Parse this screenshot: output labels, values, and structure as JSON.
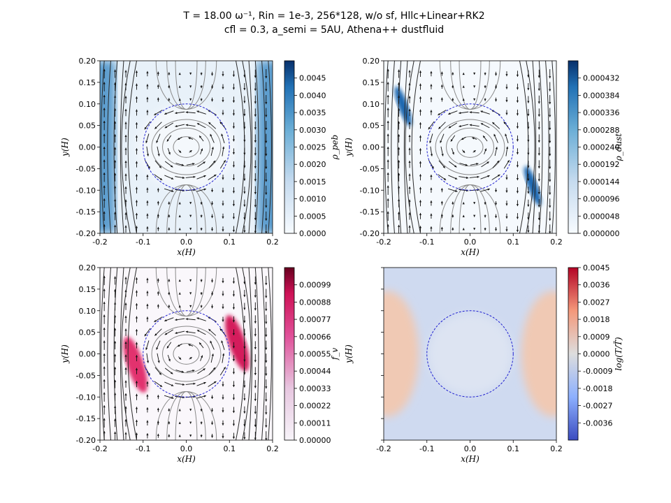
{
  "figure": {
    "title_line1": "T = 18.00 ω⁻¹, Rin = 1e-3, 256*128, w/o sf,     Hllc+Linear+RK2",
    "title_line2": "cfl = 0.3, a_semi = 5AU, Athena++ dustfluid"
  },
  "chart_data": [
    {
      "type": "heatmap",
      "panel": "top-left",
      "xlabel": "x(H)",
      "ylabel": "y(H)",
      "xlim": [
        -0.2,
        0.2
      ],
      "ylim": [
        -0.2,
        0.2
      ],
      "xticks": [
        "-0.2",
        "-0.1",
        "0.0",
        "0.1",
        "0.2"
      ],
      "yticks": [
        "0.20",
        "0.15",
        "0.10",
        "0.05",
        "0.00",
        "-0.05",
        "-0.10",
        "-0.15",
        "-0.20"
      ],
      "colorbar_label": "ρ_peb",
      "colorbar_range": [
        0,
        0.005
      ],
      "colorbar_ticks": [
        "0.0045",
        "0.0040",
        "0.0035",
        "0.0030",
        "0.0025",
        "0.0020",
        "0.0015",
        "0.0010",
        "0.0005",
        "0.0000"
      ],
      "colormap": "Blues",
      "overlays": [
        "streamlines",
        "velocity-arrows",
        "hill-sphere-circle"
      ],
      "circle_radius": 0.1
    },
    {
      "type": "heatmap",
      "panel": "top-right",
      "xlabel": "x(H)",
      "ylabel": "y(H)",
      "xlim": [
        -0.2,
        0.2
      ],
      "ylim": [
        -0.2,
        0.2
      ],
      "xticks": [
        "-0.2",
        "-0.1",
        "0.0",
        "0.1",
        "0.2"
      ],
      "yticks": [
        "0.20",
        "0.15",
        "0.10",
        "0.05",
        "0.00",
        "-0.05",
        "-0.10",
        "-0.15",
        "-0.20"
      ],
      "colorbar_label": "ρ_dust",
      "colorbar_range": [
        0,
        0.00048
      ],
      "colorbar_ticks": [
        "0.000432",
        "0.000384",
        "0.000336",
        "0.000288",
        "0.000240",
        "0.000192",
        "0.000144",
        "0.000096",
        "0.000048",
        "0.000000"
      ],
      "colormap": "Blues",
      "overlays": [
        "streamlines",
        "velocity-arrows",
        "hill-sphere-circle"
      ],
      "circle_radius": 0.1
    },
    {
      "type": "heatmap",
      "panel": "bottom-left",
      "xlabel": "x(H)",
      "ylabel": "y(H)",
      "xlim": [
        -0.2,
        0.2
      ],
      "ylim": [
        -0.2,
        0.2
      ],
      "xticks": [
        "-0.2",
        "-0.1",
        "0.0",
        "0.1",
        "0.2"
      ],
      "yticks": [
        "0.20",
        "0.15",
        "0.10",
        "0.05",
        "0.00",
        "-0.05",
        "-0.10",
        "-0.15",
        "-0.20"
      ],
      "colorbar_label": "f_v",
      "colorbar_range": [
        0,
        0.0011
      ],
      "colorbar_ticks": [
        "0.00099",
        "0.00088",
        "0.00077",
        "0.00066",
        "0.00055",
        "0.00044",
        "0.00033",
        "0.00022",
        "0.00011",
        "0.00000"
      ],
      "colormap": "RdPu",
      "overlays": [
        "streamlines",
        "velocity-arrows",
        "hill-sphere-circle"
      ],
      "circle_radius": 0.1
    },
    {
      "type": "heatmap",
      "panel": "bottom-right",
      "xlabel": "x(H)",
      "ylabel": "y(H)",
      "xlim": [
        -0.2,
        0.2
      ],
      "ylim": [
        -0.2,
        0.2
      ],
      "xticks": [
        "-0.2",
        "-0.1",
        "0.0",
        "0.1",
        "0.2"
      ],
      "yticks": [],
      "colorbar_label": "log(T/T̄)",
      "colorbar_range": [
        -0.0045,
        0.0045
      ],
      "colorbar_ticks": [
        "0.0045",
        "0.0036",
        "0.0027",
        "0.0018",
        "0.0009",
        "0.0000",
        "-0.0009",
        "-0.0018",
        "-0.0027",
        "-0.0036"
      ],
      "colormap": "coolwarm",
      "overlays": [
        "hill-sphere-circle"
      ],
      "circle_radius": 0.1
    }
  ]
}
